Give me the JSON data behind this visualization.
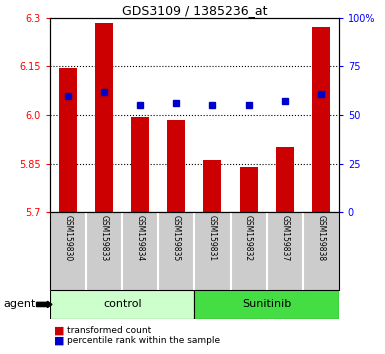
{
  "title": "GDS3109 / 1385236_at",
  "samples": [
    "GSM159830",
    "GSM159833",
    "GSM159834",
    "GSM159835",
    "GSM159831",
    "GSM159832",
    "GSM159837",
    "GSM159838"
  ],
  "bar_values": [
    6.145,
    6.285,
    5.995,
    5.985,
    5.86,
    5.84,
    5.9,
    6.27
  ],
  "dot_values": [
    60,
    62,
    55,
    56,
    55,
    55,
    57,
    61
  ],
  "y_min": 5.7,
  "y_max": 6.3,
  "y_ticks": [
    5.7,
    5.85,
    6.0,
    6.15,
    6.3
  ],
  "y2_ticks": [
    0,
    25,
    50,
    75,
    100
  ],
  "y2_labels": [
    "0",
    "25",
    "50",
    "75",
    "100%"
  ],
  "groups": [
    {
      "label": "control",
      "color": "#ccffcc",
      "start": 0,
      "end": 4
    },
    {
      "label": "Sunitinib",
      "color": "#44dd44",
      "start": 4,
      "end": 8
    }
  ],
  "bar_color": "#cc0000",
  "dot_color": "#0000cc",
  "bar_bottom": 5.7,
  "agent_label": "agent",
  "legend_items": [
    {
      "color": "#cc0000",
      "label": "transformed count"
    },
    {
      "color": "#0000cc",
      "label": "percentile rank within the sample"
    }
  ],
  "grid_lines": [
    5.85,
    6.0,
    6.15
  ],
  "sample_bg": "#cccccc",
  "sample_divider": "#ffffff"
}
